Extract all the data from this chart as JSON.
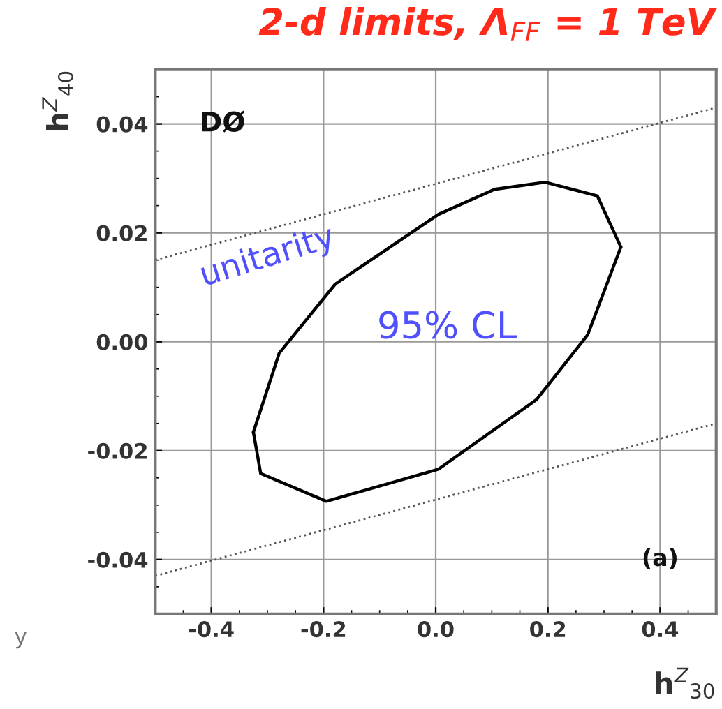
{
  "chart_data": {
    "type": "line",
    "title": "2-d limits, Λ$_{FF}$ = 1 TeV",
    "xlabel": "h$^{Z}$$_{30}$",
    "ylabel": "h$^{Z}$$_{40}$",
    "xlim": [
      -0.5,
      0.5
    ],
    "ylim": [
      -0.05,
      0.05
    ],
    "xticks": [
      -0.4,
      -0.2,
      {
        "value": 0,
        "label": "0.0"
      },
      0.2,
      0.4
    ],
    "yticks": [
      -0.04,
      -0.02,
      {
        "value": 0,
        "label": "0.00"
      },
      0.02,
      0.04
    ],
    "grid": true,
    "series": [
      {
        "color": "#000000",
        "line_style": "solid",
        "x": [
          -0.325,
          -0.279,
          -0.179,
          0.005,
          0.105,
          0.195,
          0.288,
          0.33
        ],
        "values": [
          -0.0166,
          -0.0021,
          0.0106,
          0.0234,
          0.028,
          0.0293,
          0.0268,
          0.0174
        ]
      },
      {
        "color": "#000000",
        "line_style": "solid",
        "x": [
          -0.325,
          -0.312,
          -0.195,
          0.005,
          0.18,
          0.271,
          0.33
        ],
        "values": [
          -0.0166,
          -0.0242,
          -0.0293,
          -0.0234,
          -0.0106,
          0.0013,
          0.0174
        ]
      },
      {
        "color": "#555555",
        "line_style": "dotted",
        "x": [
          -0.5,
          0.5
        ],
        "values": [
          0.015,
          0.043
        ]
      },
      {
        "color": "#555555",
        "line_style": "dotted",
        "x": [
          -0.5,
          0.5
        ],
        "values": [
          -0.043,
          -0.015
        ]
      }
    ],
    "annotations": [
      "unitarity",
      "95% CL",
      "DØ",
      "(a)",
      "y"
    ]
  }
}
